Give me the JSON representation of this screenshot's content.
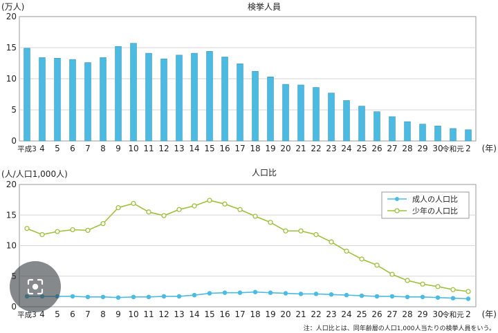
{
  "chart_data": [
    {
      "type": "bar",
      "title": "検挙人員",
      "ylabel": "(万人)",
      "xlabel_unit": "(年)",
      "ylim": [
        0,
        20
      ],
      "yticks": [
        0,
        5,
        10,
        15,
        20
      ],
      "grid": true,
      "color": "#4bbbe3",
      "categories": [
        "平成3",
        "4",
        "5",
        "6",
        "7",
        "8",
        "9",
        "10",
        "11",
        "12",
        "13",
        "14",
        "15",
        "16",
        "17",
        "18",
        "19",
        "20",
        "21",
        "22",
        "23",
        "24",
        "25",
        "26",
        "27",
        "28",
        "29",
        "30",
        "令和元",
        "2"
      ],
      "values": [
        14.9,
        13.4,
        13.3,
        13.1,
        12.6,
        13.4,
        15.2,
        15.7,
        14.1,
        13.2,
        13.8,
        14.1,
        14.4,
        13.5,
        12.4,
        11.2,
        10.3,
        9.1,
        9.0,
        8.6,
        7.7,
        6.5,
        5.6,
        4.7,
        3.9,
        3.1,
        2.7,
        2.4,
        2.0,
        1.8
      ]
    },
    {
      "type": "line",
      "title": "人口比",
      "ylabel": "(人/人口1,000人)",
      "xlabel_unit": "(年)",
      "ylim": [
        0,
        20
      ],
      "yticks": [
        0,
        5,
        10,
        15,
        20
      ],
      "grid": true,
      "legend_position": "top-right",
      "categories": [
        "平成3",
        "4",
        "5",
        "6",
        "7",
        "8",
        "9",
        "10",
        "11",
        "12",
        "13",
        "14",
        "15",
        "16",
        "17",
        "18",
        "19",
        "20",
        "21",
        "22",
        "23",
        "24",
        "25",
        "26",
        "27",
        "28",
        "29",
        "30",
        "令和元",
        "2"
      ],
      "series": [
        {
          "name": "成人の人口比",
          "color": "#4bbbe3",
          "values": [
            1.7,
            1.7,
            1.7,
            1.7,
            1.6,
            1.6,
            1.5,
            1.6,
            1.6,
            1.7,
            1.7,
            1.9,
            2.2,
            2.3,
            2.3,
            2.4,
            2.3,
            2.2,
            2.1,
            2.1,
            2.0,
            1.9,
            1.8,
            1.7,
            1.7,
            1.6,
            1.6,
            1.5,
            1.4,
            1.3
          ]
        },
        {
          "name": "少年の人口比",
          "color": "#9cc23a",
          "values": [
            12.8,
            11.8,
            12.3,
            12.6,
            12.5,
            13.6,
            16.2,
            16.9,
            15.5,
            14.9,
            15.9,
            16.5,
            17.4,
            16.8,
            15.9,
            14.8,
            13.8,
            12.4,
            12.4,
            11.8,
            10.6,
            9.1,
            7.8,
            6.8,
            5.3,
            4.3,
            3.7,
            3.3,
            2.8,
            2.5
          ]
        }
      ]
    }
  ],
  "footnote": "注：人口比とは、同年齢層の人口1,000人当たりの検挙人員をいう。",
  "icons": {
    "lens": "google-lens-icon"
  }
}
